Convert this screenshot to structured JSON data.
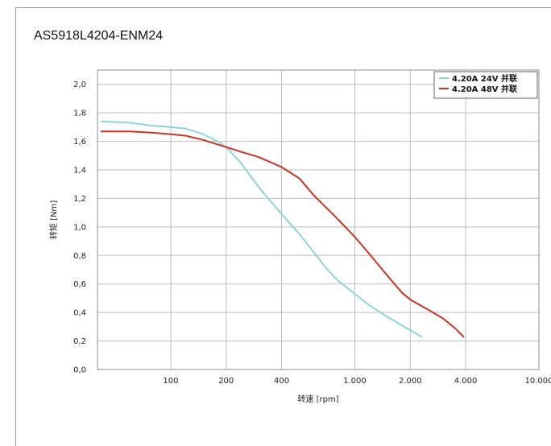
{
  "title": "AS5918L4204-ENM24",
  "chart_data": {
    "type": "line",
    "title": "AS5918L4204-ENM24",
    "xlabel": "转速 [rpm]",
    "ylabel": "转矩 [Nm]",
    "x_scale": "log",
    "xlim": [
      40,
      10000
    ],
    "ylim": [
      0,
      2.1
    ],
    "x_ticks": [
      100,
      200,
      400,
      1000,
      2000,
      4000,
      10000
    ],
    "x_tick_labels": [
      "100",
      "200",
      "400",
      "1.000",
      "2.000",
      "4.000",
      "10.000"
    ],
    "y_ticks": [
      0,
      0.2,
      0.4,
      0.6,
      0.8,
      1.0,
      1.2,
      1.4,
      1.6,
      1.8,
      2.0
    ],
    "y_tick_labels": [
      "0,0",
      "0,2",
      "0,4",
      "0,6",
      "0,8",
      "1,0",
      "1,2",
      "1,4",
      "1,6",
      "1,8",
      "2,0"
    ],
    "grid": true,
    "legend_position": "top-right",
    "series": [
      {
        "name": "4.20A 24V 并联",
        "color": "#8fd3dc",
        "x": [
          42,
          60,
          80,
          100,
          120,
          150,
          180,
          200,
          240,
          300,
          400,
          500,
          600,
          700,
          800,
          1000,
          1200,
          1500,
          1800,
          2100,
          2300
        ],
        "y": [
          1.74,
          1.73,
          1.71,
          1.7,
          1.69,
          1.65,
          1.6,
          1.56,
          1.45,
          1.28,
          1.09,
          0.95,
          0.82,
          0.71,
          0.63,
          0.53,
          0.45,
          0.37,
          0.31,
          0.26,
          0.23
        ]
      },
      {
        "name": "4.20A 48V 并联",
        "color": "#cc3322",
        "x": [
          42,
          60,
          80,
          100,
          120,
          150,
          200,
          250,
          300,
          400,
          500,
          600,
          800,
          1000,
          1200,
          1500,
          1800,
          2000,
          2500,
          3000,
          3500,
          3900
        ],
        "y": [
          1.67,
          1.67,
          1.66,
          1.65,
          1.64,
          1.61,
          1.56,
          1.52,
          1.49,
          1.42,
          1.34,
          1.22,
          1.06,
          0.93,
          0.81,
          0.66,
          0.54,
          0.49,
          0.42,
          0.36,
          0.29,
          0.23
        ]
      }
    ]
  }
}
